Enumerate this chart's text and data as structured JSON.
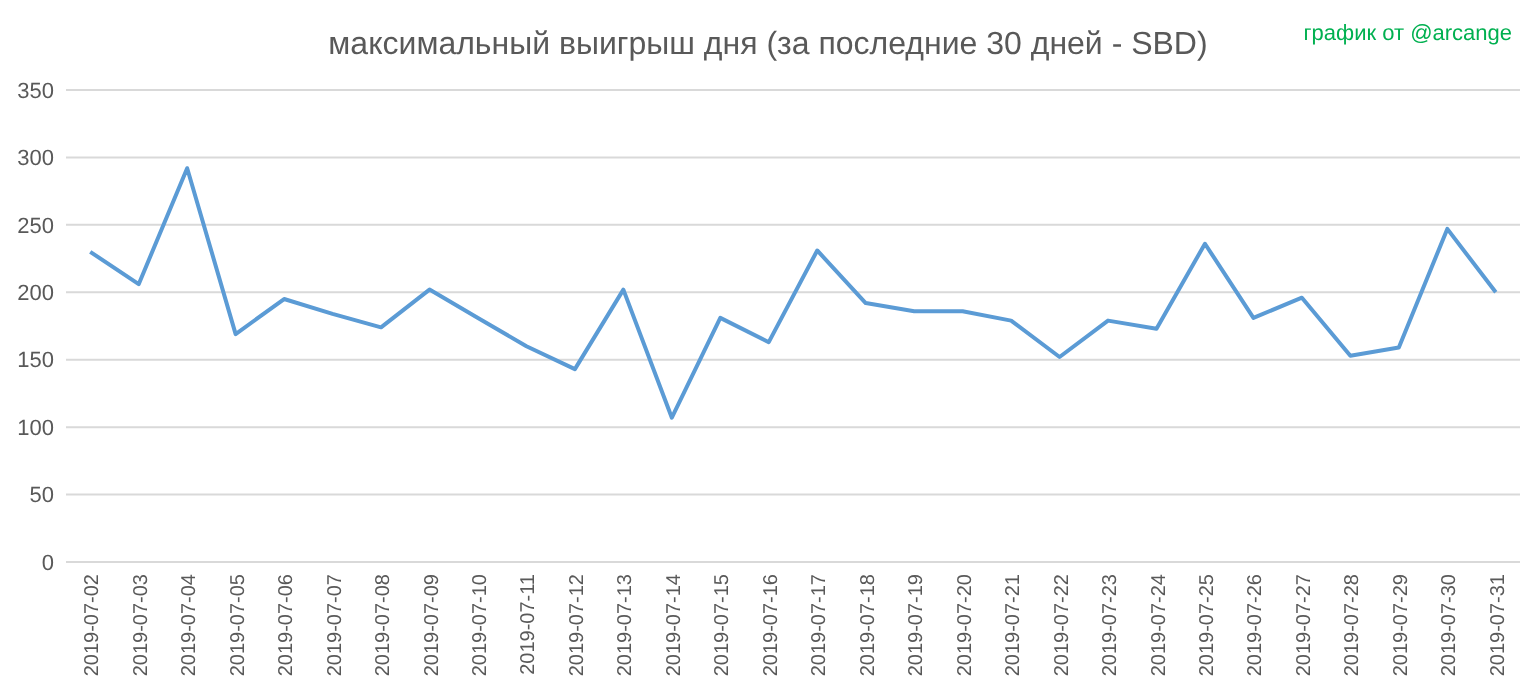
{
  "chart_data": {
    "type": "line",
    "title": "максимальный выигрыш дня (за последние 30 дней - SBD)",
    "annotations": [
      "график от @arcange"
    ],
    "categories": [
      "2019-07-02",
      "2019-07-03",
      "2019-07-04",
      "2019-07-05",
      "2019-07-06",
      "2019-07-07",
      "2019-07-08",
      "2019-07-09",
      "2019-07-10",
      "2019-07-11",
      "2019-07-12",
      "2019-07-13",
      "2019-07-14",
      "2019-07-15",
      "2019-07-16",
      "2019-07-17",
      "2019-07-18",
      "2019-07-19",
      "2019-07-20",
      "2019-07-21",
      "2019-07-22",
      "2019-07-23",
      "2019-07-24",
      "2019-07-25",
      "2019-07-26",
      "2019-07-27",
      "2019-07-28",
      "2019-07-29",
      "2019-07-30",
      "2019-07-31"
    ],
    "series": [
      {
        "color": "#5b9bd5",
        "values": [
          230,
          206,
          292,
          169,
          195,
          184,
          174,
          202,
          181,
          160,
          143,
          202,
          107,
          181,
          163,
          231,
          192,
          186,
          186,
          179,
          152,
          179,
          173,
          236,
          181,
          196,
          153,
          159,
          247,
          200
        ]
      }
    ],
    "ylim": [
      0,
      350
    ],
    "yticks": [
      0,
      50,
      100,
      150,
      200,
      250,
      300,
      350
    ],
    "grid": "y"
  }
}
